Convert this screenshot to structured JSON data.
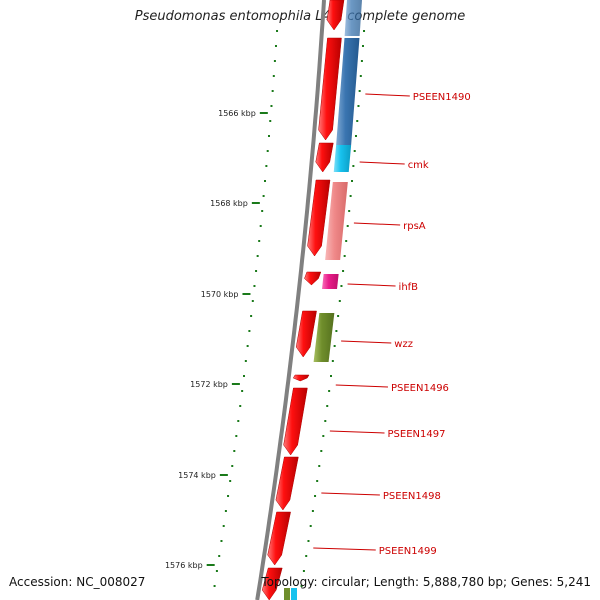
{
  "title": "Pseudomonas entomophila L48, complete genome",
  "accession_text": "Accession: NC_008027",
  "summary_text": "Topology: circular; Length: 5,888,780 bp; Genes: 5,241",
  "colors": {
    "gene_red": "#ff1a1a",
    "label_red": "#cc0000",
    "tick_green": "#1a7a1a",
    "backbone_gray": "#808080"
  },
  "scale_ticks": [
    {
      "label": "1566 kbp"
    },
    {
      "label": "1568 kbp"
    },
    {
      "label": "1570 kbp"
    },
    {
      "label": "1572 kbp"
    },
    {
      "label": "1574 kbp"
    },
    {
      "label": "1576 kbp"
    }
  ],
  "gene_labels": [
    {
      "name": "PSEEN1490",
      "color": "#3a75b0"
    },
    {
      "name": "cmk",
      "color": "#17c2ee"
    },
    {
      "name": "rpsA",
      "color": "#f08a8a"
    },
    {
      "name": "ihfB",
      "color": "#ea1c8a"
    },
    {
      "name": "wzz",
      "color": "#6f8e2c"
    },
    {
      "name": "PSEEN1496",
      "color": ""
    },
    {
      "name": "PSEEN1497",
      "color": ""
    },
    {
      "name": "PSEEN1498",
      "color": ""
    },
    {
      "name": "PSEEN1499",
      "color": ""
    }
  ]
}
